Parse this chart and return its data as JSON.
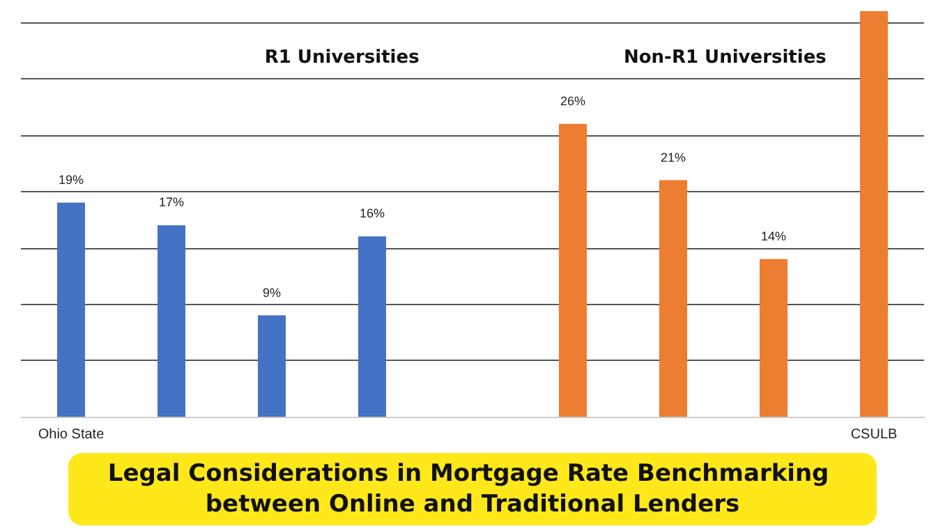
{
  "chart_data": {
    "type": "bar",
    "title": "Legal Considerations in Mortgage Rate Benchmarking between Online and Traditional Lenders",
    "categories": [
      "Ohio State",
      null,
      null,
      null,
      null,
      null,
      null,
      null,
      "CSULB"
    ],
    "values": [
      19,
      17,
      9,
      16,
      null,
      26,
      21,
      14,
      36
    ],
    "colors": [
      "#4472c4",
      "#4472c4",
      "#4472c4",
      "#4472c4",
      null,
      "#ed7d31",
      "#ed7d31",
      "#ed7d31",
      "#ed7d31"
    ],
    "value_labels": [
      "19%",
      "17%",
      "9%",
      "16%",
      null,
      "26%",
      "21%",
      "14%",
      null
    ],
    "annotations": [
      "R1 Universities",
      "Non-R1 Universities"
    ],
    "ylim": [
      0,
      36
    ],
    "yticks": [
      {
        "value": 0,
        "label": null
      },
      {
        "value": 5,
        "label": null
      },
      {
        "value": 10,
        "label": null
      },
      {
        "value": 15,
        "label": null
      },
      {
        "value": 20,
        "label": null
      },
      {
        "value": 25,
        "label": null
      },
      {
        "value": 30,
        "label": null
      },
      {
        "value": 35,
        "label": null
      }
    ],
    "grid": "y",
    "tick_labels": "x"
  }
}
